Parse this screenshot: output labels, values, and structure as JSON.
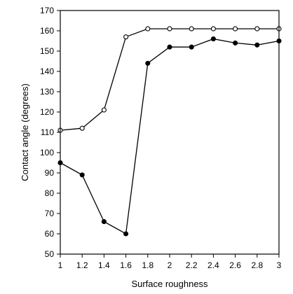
{
  "chart_data": {
    "type": "line",
    "title": "",
    "xlabel": "Surface roughness",
    "ylabel": "Contact angle (degrees)",
    "xlim": [
      1,
      3
    ],
    "ylim": [
      50,
      170
    ],
    "x_ticks": [
      "1",
      "1.2",
      "1.4",
      "1.6",
      "1.8",
      "2",
      "2.2",
      "2.4",
      "2.6",
      "2.8",
      "3"
    ],
    "y_ticks": [
      "50",
      "60",
      "70",
      "80",
      "90",
      "100",
      "110",
      "120",
      "130",
      "140",
      "150",
      "160",
      "170"
    ],
    "grid": false,
    "legend": "none",
    "series": [
      {
        "marker": "open-circle",
        "x": [
          1,
          1.2,
          1.4,
          1.6,
          1.8,
          2,
          2.2,
          2.4,
          2.6,
          2.8,
          3
        ],
        "y": [
          111,
          112,
          121,
          157,
          161,
          161,
          161,
          161,
          161,
          161,
          161
        ]
      },
      {
        "marker": "filled-circle",
        "x": [
          1,
          1.2,
          1.4,
          1.6,
          1.8,
          2,
          2.2,
          2.4,
          2.6,
          2.8,
          3
        ],
        "y": [
          95,
          89,
          66,
          60,
          144,
          152,
          152,
          156,
          154,
          153,
          155
        ]
      }
    ]
  }
}
